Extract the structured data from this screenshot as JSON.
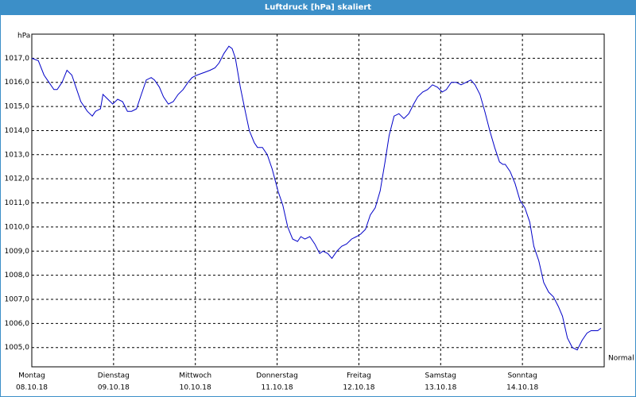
{
  "chart_data": {
    "type": "line",
    "title": "Luftdruck [hPa] skaliert",
    "y_label": "hPa",
    "annotation": "Normal",
    "xlim": [
      0,
      7
    ],
    "xticks": [
      {
        "value": 0,
        "label": "Montag",
        "date": "08.10.18"
      },
      {
        "value": 1,
        "label": "Dienstag",
        "date": "09.10.18"
      },
      {
        "value": 2,
        "label": "Mittwoch",
        "date": "10.10.18"
      },
      {
        "value": 3,
        "label": "Donnerstag",
        "date": "11.10.18"
      },
      {
        "value": 4,
        "label": "Freitag",
        "date": "12.10.18"
      },
      {
        "value": 5,
        "label": "Samstag",
        "date": "13.10.18"
      },
      {
        "value": 6,
        "label": "Sonntag",
        "date": "14.10.18"
      }
    ],
    "ylim": [
      1004.2,
      1018
    ],
    "yticks": [
      {
        "value": 1005,
        "label": "1005,0"
      },
      {
        "value": 1006,
        "label": "1006,0"
      },
      {
        "value": 1007,
        "label": "1007,0"
      },
      {
        "value": 1008,
        "label": "1008,0"
      },
      {
        "value": 1009,
        "label": "1009,0"
      },
      {
        "value": 1010,
        "label": "1010,0"
      },
      {
        "value": 1011,
        "label": "1011,0"
      },
      {
        "value": 1012,
        "label": "1012,0"
      },
      {
        "value": 1013,
        "label": "1013,0"
      },
      {
        "value": 1014,
        "label": "1014,0"
      },
      {
        "value": 1015,
        "label": "1015,0"
      },
      {
        "value": 1016,
        "label": "1016,0"
      },
      {
        "value": 1017,
        "label": "1017,0"
      }
    ],
    "grid": true,
    "color": "#0000c8",
    "x": [
      0.0,
      0.08,
      0.15,
      0.21,
      0.27,
      0.31,
      0.37,
      0.43,
      0.49,
      0.54,
      0.6,
      0.68,
      0.74,
      0.78,
      0.84,
      0.87,
      0.93,
      0.99,
      1.05,
      1.11,
      1.17,
      1.22,
      1.28,
      1.34,
      1.4,
      1.46,
      1.5,
      1.56,
      1.61,
      1.67,
      1.73,
      1.79,
      1.85,
      1.91,
      1.96,
      2.02,
      2.1,
      2.18,
      2.24,
      2.29,
      2.35,
      2.41,
      2.45,
      2.49,
      2.55,
      2.61,
      2.66,
      2.72,
      2.76,
      2.82,
      2.88,
      2.94,
      3.01,
      3.07,
      3.13,
      3.19,
      3.25,
      3.29,
      3.34,
      3.4,
      3.46,
      3.52,
      3.56,
      3.62,
      3.67,
      3.73,
      3.79,
      3.85,
      3.91,
      3.97,
      4.02,
      4.08,
      4.14,
      4.2,
      4.26,
      4.32,
      4.37,
      4.43,
      4.49,
      4.55,
      4.61,
      4.67,
      4.72,
      4.78,
      4.84,
      4.9,
      4.96,
      5.02,
      5.07,
      5.13,
      5.19,
      5.25,
      5.31,
      5.37,
      5.42,
      5.48,
      5.54,
      5.6,
      5.66,
      5.72,
      5.76,
      5.79,
      5.85,
      5.91,
      5.97,
      6.03,
      6.09,
      6.14,
      6.2,
      6.26,
      6.32,
      6.38,
      6.44,
      6.49,
      6.55,
      6.61,
      6.67,
      6.73,
      6.79,
      6.84,
      6.92,
      6.96
    ],
    "values": [
      1017.0,
      1016.9,
      1016.3,
      1016.0,
      1015.7,
      1015.7,
      1016.0,
      1016.5,
      1016.3,
      1015.8,
      1015.2,
      1014.8,
      1014.6,
      1014.8,
      1014.9,
      1015.5,
      1015.3,
      1015.1,
      1015.3,
      1015.2,
      1014.8,
      1014.8,
      1014.9,
      1015.5,
      1016.1,
      1016.2,
      1016.1,
      1015.8,
      1015.4,
      1015.1,
      1015.2,
      1015.5,
      1015.7,
      1016.0,
      1016.2,
      1016.3,
      1016.4,
      1016.5,
      1016.6,
      1016.8,
      1017.2,
      1017.5,
      1017.4,
      1017.0,
      1015.8,
      1014.8,
      1014.0,
      1013.5,
      1013.3,
      1013.3,
      1013.0,
      1012.4,
      1011.5,
      1010.9,
      1010.0,
      1009.5,
      1009.4,
      1009.6,
      1009.5,
      1009.6,
      1009.3,
      1008.9,
      1009.0,
      1008.9,
      1008.7,
      1009.0,
      1009.2,
      1009.3,
      1009.5,
      1009.6,
      1009.7,
      1009.9,
      1010.5,
      1010.8,
      1011.5,
      1012.7,
      1013.8,
      1014.6,
      1014.7,
      1014.5,
      1014.7,
      1015.1,
      1015.4,
      1015.6,
      1015.7,
      1015.9,
      1015.8,
      1015.6,
      1015.7,
      1016.0,
      1016.0,
      1015.9,
      1016.0,
      1016.1,
      1015.9,
      1015.5,
      1014.8,
      1014.0,
      1013.3,
      1012.7,
      1012.6,
      1012.6,
      1012.3,
      1011.8,
      1011.1,
      1010.8,
      1010.2,
      1009.2,
      1008.6,
      1007.7,
      1007.3,
      1007.1,
      1006.7,
      1006.3,
      1005.4,
      1005.0,
      1004.9,
      1005.3,
      1005.6,
      1005.7,
      1005.7,
      1005.8
    ]
  }
}
